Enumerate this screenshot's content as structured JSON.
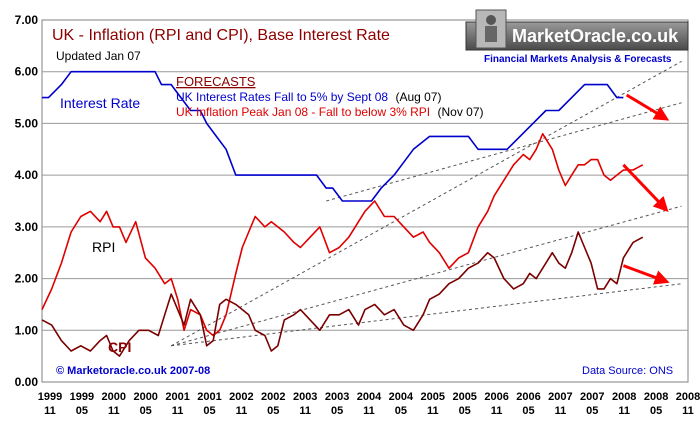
{
  "chart_data": {
    "type": "line",
    "title": "UK - Inflation (RPI and CPI), Base Interest Rate",
    "subtitle": "Updated Jan 07",
    "brand": {
      "name": "MarketOracle.co.uk",
      "tagline": "Financial Markets Analysis & Forecasts"
    },
    "forecasts": {
      "heading": "FORECASTS",
      "line1": "UK Interest Rates Fall to 5% by Sept 08",
      "line1_date": "(Aug 07)",
      "line2": "UK Inflation Peak Jan 08 - Fall to below 3% RPI",
      "line2_date": "(Nov 07)"
    },
    "labels": {
      "interest": "Interest Rate",
      "rpi": "RPI",
      "cpi": "CPI"
    },
    "copyright": "© Marketoracle.co.uk 2007-08",
    "source": "Data Source: ONS",
    "ylim": [
      0,
      7
    ],
    "yticks": [
      "0.00",
      "1.00",
      "2.00",
      "3.00",
      "4.00",
      "5.00",
      "6.00",
      "7.00"
    ],
    "xlim": [
      1999.0,
      2009.0
    ],
    "xticks": [
      {
        "top": "1999",
        "bot": "11"
      },
      {
        "top": "1999",
        "bot": "05"
      },
      {
        "top": "2000",
        "bot": "11"
      },
      {
        "top": "2000",
        "bot": "05"
      },
      {
        "top": "2001",
        "bot": "11"
      },
      {
        "top": "2001",
        "bot": "05"
      },
      {
        "top": "2002",
        "bot": "11"
      },
      {
        "top": "2002",
        "bot": "05"
      },
      {
        "top": "2003",
        "bot": "11"
      },
      {
        "top": "2003",
        "bot": "05"
      },
      {
        "top": "2004",
        "bot": "11"
      },
      {
        "top": "2004",
        "bot": "05"
      },
      {
        "top": "2005",
        "bot": "11"
      },
      {
        "top": "2005",
        "bot": "05"
      },
      {
        "top": "2006",
        "bot": "11"
      },
      {
        "top": "2006",
        "bot": "05"
      },
      {
        "top": "2007",
        "bot": "11"
      },
      {
        "top": "2007",
        "bot": "05"
      },
      {
        "top": "2008",
        "bot": "11"
      },
      {
        "top": "2008",
        "bot": "05"
      },
      {
        "top": "2008",
        "bot": "11"
      }
    ],
    "series": [
      {
        "name": "Interest Rate",
        "color": "#0000cc",
        "x": [
          1999.0,
          1999.1,
          1999.3,
          1999.45,
          1999.6,
          1999.8,
          2000.0,
          2000.2,
          2000.4,
          2000.6,
          2000.75,
          2000.85,
          2001.0,
          2001.15,
          2001.3,
          2001.45,
          2001.55,
          2001.7,
          2001.85,
          2002.0,
          2002.5,
          2003.0,
          2003.25,
          2003.4,
          2003.5,
          2003.65,
          2003.9,
          2004.1,
          2004.25,
          2004.45,
          2004.6,
          2004.75,
          2005.0,
          2005.2,
          2005.6,
          2005.75,
          2006.0,
          2006.2,
          2006.4,
          2006.6,
          2006.8,
          2007.0,
          2007.2,
          2007.4,
          2007.6,
          2007.75,
          2007.9,
          2008.0
        ],
        "y": [
          5.5,
          5.5,
          5.75,
          6.0,
          6.0,
          6.0,
          6.0,
          6.0,
          6.0,
          6.0,
          6.0,
          5.75,
          5.75,
          5.5,
          5.25,
          5.25,
          5.0,
          4.75,
          4.5,
          4.0,
          4.0,
          4.0,
          4.0,
          3.75,
          3.75,
          3.5,
          3.5,
          3.5,
          3.75,
          4.0,
          4.25,
          4.5,
          4.75,
          4.75,
          4.75,
          4.5,
          4.5,
          4.5,
          4.75,
          5.0,
          5.25,
          5.25,
          5.5,
          5.75,
          5.75,
          5.75,
          5.5,
          5.5
        ]
      },
      {
        "name": "RPI",
        "color": "#e00000",
        "x": [
          1999.0,
          1999.15,
          1999.3,
          1999.45,
          1999.6,
          1999.75,
          1999.9,
          2000.0,
          2000.1,
          2000.2,
          2000.3,
          2000.45,
          2000.6,
          2000.75,
          2000.9,
          2001.0,
          2001.1,
          2001.2,
          2001.3,
          2001.45,
          2001.55,
          2001.65,
          2001.75,
          2001.85,
          2002.0,
          2002.1,
          2002.2,
          2002.3,
          2002.45,
          2002.55,
          2002.65,
          2002.75,
          2002.9,
          2003.0,
          2003.15,
          2003.3,
          2003.45,
          2003.6,
          2003.75,
          2003.9,
          2004.0,
          2004.15,
          2004.3,
          2004.45,
          2004.6,
          2004.75,
          2004.9,
          2005.0,
          2005.15,
          2005.3,
          2005.45,
          2005.6,
          2005.75,
          2005.9,
          2006.0,
          2006.15,
          2006.3,
          2006.45,
          2006.55,
          2006.65,
          2006.75,
          2006.9,
          2007.0,
          2007.1,
          2007.2,
          2007.3,
          2007.4,
          2007.5,
          2007.6,
          2007.7,
          2007.8,
          2007.9,
          2008.0,
          2008.15,
          2008.3
        ],
        "y": [
          1.4,
          1.8,
          2.3,
          2.9,
          3.2,
          3.3,
          3.1,
          3.3,
          3.0,
          3.0,
          2.7,
          3.1,
          2.4,
          2.2,
          1.9,
          2.0,
          1.6,
          1.0,
          1.4,
          1.3,
          1.0,
          0.9,
          1.0,
          1.3,
          2.1,
          2.6,
          2.9,
          3.2,
          3.0,
          3.1,
          3.0,
          2.9,
          2.7,
          2.6,
          2.8,
          3.0,
          2.5,
          2.6,
          2.8,
          3.1,
          3.3,
          3.5,
          3.2,
          3.2,
          3.0,
          2.8,
          2.9,
          2.7,
          2.5,
          2.2,
          2.4,
          2.5,
          3.0,
          3.3,
          3.6,
          3.9,
          4.2,
          4.4,
          4.3,
          4.5,
          4.8,
          4.5,
          4.1,
          3.8,
          4.0,
          4.2,
          4.2,
          4.3,
          4.3,
          4.0,
          3.9,
          4.0,
          4.1,
          4.1,
          4.2
        ]
      },
      {
        "name": "CPI",
        "color": "#7a0000",
        "x": [
          1999.0,
          1999.15,
          1999.3,
          1999.45,
          1999.6,
          1999.75,
          1999.9,
          2000.0,
          2000.1,
          2000.2,
          2000.35,
          2000.5,
          2000.65,
          2000.8,
          2000.9,
          2001.0,
          2001.1,
          2001.2,
          2001.3,
          2001.45,
          2001.55,
          2001.65,
          2001.75,
          2001.85,
          2002.0,
          2002.1,
          2002.2,
          2002.3,
          2002.45,
          2002.55,
          2002.65,
          2002.75,
          2002.9,
          2003.0,
          2003.15,
          2003.3,
          2003.45,
          2003.6,
          2003.75,
          2003.9,
          2004.0,
          2004.15,
          2004.3,
          2004.45,
          2004.6,
          2004.75,
          2004.9,
          2005.0,
          2005.15,
          2005.3,
          2005.45,
          2005.6,
          2005.75,
          2005.9,
          2006.0,
          2006.15,
          2006.3,
          2006.45,
          2006.55,
          2006.65,
          2006.75,
          2006.9,
          2007.0,
          2007.1,
          2007.2,
          2007.3,
          2007.4,
          2007.5,
          2007.6,
          2007.7,
          2007.8,
          2007.9,
          2008.0,
          2008.15,
          2008.3
        ],
        "y": [
          1.2,
          1.1,
          0.8,
          0.6,
          0.7,
          0.6,
          0.8,
          0.9,
          0.6,
          0.5,
          0.8,
          1.0,
          1.0,
          0.9,
          1.3,
          1.7,
          1.4,
          1.1,
          1.6,
          1.3,
          0.7,
          0.8,
          1.5,
          1.6,
          1.5,
          1.4,
          1.3,
          1.0,
          0.9,
          0.6,
          0.7,
          1.2,
          1.3,
          1.4,
          1.2,
          1.0,
          1.3,
          1.3,
          1.4,
          1.1,
          1.4,
          1.5,
          1.3,
          1.4,
          1.1,
          1.0,
          1.3,
          1.6,
          1.7,
          1.9,
          2.0,
          2.2,
          2.3,
          2.5,
          2.4,
          2.0,
          1.8,
          1.9,
          2.1,
          2.0,
          2.2,
          2.5,
          2.3,
          2.2,
          2.5,
          2.9,
          2.6,
          2.3,
          1.8,
          1.8,
          2.0,
          1.9,
          2.4,
          2.7,
          2.8
        ]
      }
    ],
    "trendlines": [
      {
        "x": [
          2001.0,
          2008.9
        ],
        "y": [
          0.7,
          1.9
        ]
      },
      {
        "x": [
          2001.0,
          2008.9
        ],
        "y": [
          0.7,
          3.4
        ]
      },
      {
        "x": [
          2003.4,
          2008.9
        ],
        "y": [
          3.5,
          5.4
        ]
      },
      {
        "x": [
          2001.0,
          2008.9
        ],
        "y": [
          0.7,
          6.2
        ]
      }
    ],
    "arrows": [
      {
        "x": [
          2008.05,
          2008.65
        ],
        "y": [
          5.55,
          5.1
        ]
      },
      {
        "x": [
          2008.0,
          2008.65
        ],
        "y": [
          4.2,
          3.35
        ]
      },
      {
        "x": [
          2008.0,
          2008.65
        ],
        "y": [
          2.25,
          1.95
        ]
      }
    ]
  }
}
